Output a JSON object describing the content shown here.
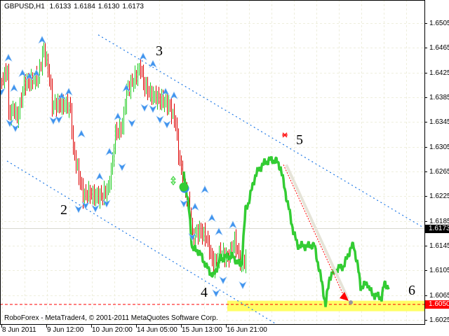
{
  "header": {
    "symbol": "GBPUSD,H1",
    "open": "1.6133",
    "high": "1.6184",
    "low": "1.6130",
    "close": "1.6173"
  },
  "copyright": "RoboForex - MetaTrader4, © 2001-2011 MetaQuotes Software Corp.",
  "chart_data": {
    "type": "ohlc",
    "symbol": "GBPUSD",
    "timeframe": "H1",
    "price_axis": {
      "range": [
        1.6025,
        1.6505
      ],
      "ticks": [
        "1.6505",
        "1.6465",
        "1.6425",
        "1.6385",
        "1.6345",
        "1.6305",
        "1.6265",
        "1.6225",
        "1.6185",
        "1.6145",
        "1.6105",
        "1.6065",
        "1.6025"
      ]
    },
    "time_axis": {
      "labels": [
        "8 Jun 2011",
        "9 Jun 12:00",
        "10 Jun 20:00",
        "14 Jun 05:00",
        "15 Jun 13:00",
        "16 Jun 21:00"
      ]
    },
    "grid": true,
    "current_price": {
      "value": "1.6173",
      "color": "#000000"
    },
    "level": {
      "value": "1.6050",
      "color": "#ff0000"
    },
    "colors": {
      "up_bar": "#22cc22",
      "down_bar": "#dd0000",
      "line": "#33cc33",
      "fractal": "#3f93ee",
      "channel": "#1e78e6",
      "zone": "#ffff66"
    },
    "bars_path": [
      [
        "2011-06-08 04:00",
        1.6412
      ],
      [
        "2011-06-08 08:00",
        1.6429
      ],
      [
        "2011-06-08 09:00",
        1.6356
      ],
      [
        "2011-06-08 13:00",
        1.6367
      ],
      [
        "2011-06-08 15:00",
        1.635
      ],
      [
        "2011-06-08 20:00",
        1.6407
      ],
      [
        "2011-06-09 01:00",
        1.6412
      ],
      [
        "2011-06-09 06:00",
        1.6418
      ],
      [
        "2011-06-09 10:00",
        1.6463
      ],
      [
        "2011-06-09 14:00",
        1.6418
      ],
      [
        "2011-06-09 16:00",
        1.6373
      ],
      [
        "2011-06-09 21:00",
        1.6373
      ],
      [
        "2011-06-10 02:00",
        1.6373
      ],
      [
        "2011-06-10 05:00",
        1.6367
      ],
      [
        "2011-06-10 07:00",
        1.6299
      ],
      [
        "2011-06-10 11:00",
        1.6259
      ],
      [
        "2011-06-10 14:00",
        1.6225
      ],
      [
        "2011-06-10 17:00",
        1.6231
      ],
      [
        "2011-06-10 22:00",
        1.6225
      ],
      [
        "2011-06-13 03:00",
        1.6225
      ],
      [
        "2011-06-13 08:00",
        1.6237
      ],
      [
        "2011-06-13 11:00",
        1.6282
      ],
      [
        "2011-06-13 13:00",
        1.6327
      ],
      [
        "2011-06-13 18:00",
        1.6339
      ],
      [
        "2011-06-13 21:00",
        1.6395
      ],
      [
        "2011-06-14 02:00",
        1.6412
      ],
      [
        "2011-06-14 07:00",
        1.6435
      ],
      [
        "2011-06-14 09:00",
        1.6407
      ],
      [
        "2011-06-14 14:00",
        1.639
      ],
      [
        "2011-06-14 19:00",
        1.6384
      ],
      [
        "2011-06-15 03:00",
        1.6373
      ],
      [
        "2011-06-15 08:00",
        1.6344
      ],
      [
        "2011-06-15 10:00",
        1.6293
      ],
      [
        "2011-06-15 14:00",
        1.6242
      ],
      [
        "2011-06-15 18:00",
        1.6203
      ],
      [
        "2011-06-15 20:00",
        1.6158
      ],
      [
        "2011-06-16 01:00",
        1.6169
      ],
      [
        "2011-06-16 06:00",
        1.6158
      ],
      [
        "2011-06-16 11:00",
        1.6112
      ],
      [
        "2011-06-16 16:00",
        1.6135
      ],
      [
        "2011-06-16 21:00",
        1.6124
      ],
      [
        "2011-06-17 02:00",
        1.6152
      ],
      [
        "2011-06-17 07:00",
        1.6112
      ],
      [
        "2011-06-17 10:00",
        1.6124
      ]
    ],
    "line_series": [
      [
        "2011-06-15 14:00",
        1.6265
      ],
      [
        "2011-06-15 18:00",
        1.6197
      ],
      [
        "2011-06-15 20:00",
        1.6141
      ],
      [
        "2011-06-16 01:00",
        1.6135
      ],
      [
        "2011-06-16 06:00",
        1.6112
      ],
      [
        "2011-06-16 11:00",
        1.6095
      ],
      [
        "2011-06-16 16:00",
        1.6124
      ],
      [
        "2011-06-17 00:00",
        1.6129
      ],
      [
        "2011-06-17 07:00",
        1.6112
      ],
      [
        "2011-06-17 10:00",
        1.6203
      ],
      [
        "2011-06-17 12:00",
        1.6214
      ],
      [
        "2011-06-17 17:00",
        1.6259
      ],
      [
        "2011-06-17 22:00",
        1.6276
      ],
      [
        "2011-06-20 03:00",
        1.6284
      ],
      [
        "2011-06-20 08:00",
        1.6282
      ],
      [
        "2011-06-20 11:00",
        1.6271
      ],
      [
        "2011-06-20 15:00",
        1.6225
      ],
      [
        "2011-06-20 17:00",
        1.6203
      ],
      [
        "2011-06-20 20:00",
        1.6169
      ],
      [
        "2011-06-20 23:00",
        1.6146
      ],
      [
        "2011-06-21 04:00",
        1.6144
      ],
      [
        "2011-06-21 11:00",
        1.6146
      ],
      [
        "2011-06-21 14:00",
        1.6112
      ],
      [
        "2011-06-21 17:00",
        1.6078
      ],
      [
        "2011-06-21 19:00",
        1.6048
      ],
      [
        "2011-06-21 22:00",
        1.6095
      ],
      [
        "2011-06-22 03:00",
        1.6107
      ],
      [
        "2011-06-22 08:00",
        1.6112
      ],
      [
        "2011-06-22 13:00",
        1.6141
      ],
      [
        "2011-06-22 15:00",
        1.6146
      ],
      [
        "2011-06-22 18:00",
        1.6112
      ],
      [
        "2011-06-22 20:00",
        1.6078
      ],
      [
        "2011-06-23 01:00",
        1.6084
      ],
      [
        "2011-06-23 04:00",
        1.6067
      ],
      [
        "2011-06-23 11:00",
        1.6061
      ],
      [
        "2011-06-23 13:00",
        1.6084
      ],
      [
        "2011-06-23 16:00",
        1.6078
      ]
    ],
    "fractals_up": [
      [
        "2011-06-08 09:00",
        1.6448
      ],
      [
        "2011-06-09 09:00",
        1.6477
      ],
      [
        "2011-06-08 19:00",
        1.6423
      ],
      [
        "2011-06-09 00:00",
        1.6418
      ],
      [
        "2011-06-09 05:00",
        1.6423
      ],
      [
        "2011-06-08 13:00",
        1.6399
      ],
      [
        "2011-06-09 23:00",
        1.6386
      ],
      [
        "2011-06-10 04:00",
        1.6393
      ],
      [
        "2011-06-10 13:00",
        1.6325
      ],
      [
        "2011-06-13 02:00",
        1.6256
      ],
      [
        "2011-06-13 09:00",
        1.6296
      ],
      [
        "2011-06-13 15:00",
        1.6353
      ],
      [
        "2011-06-13 21:00",
        1.6399
      ],
      [
        "2011-06-14 09:00",
        1.645
      ],
      [
        "2011-06-14 16:00",
        1.6438
      ],
      [
        "2011-06-15 01:00",
        1.6393
      ],
      [
        "2011-06-15 07:00",
        1.6387
      ],
      [
        "2011-06-16 05:00",
        1.6235
      ],
      [
        "2011-06-15 22:00",
        1.6207
      ],
      [
        "2011-06-16 10:00",
        1.6189
      ],
      [
        "2011-06-16 15:00",
        1.6167
      ],
      [
        "2011-06-17 01:00",
        1.6178
      ]
    ],
    "fractals_down": [
      [
        "2011-06-08 04:00",
        1.6395
      ],
      [
        "2011-06-08 10:00",
        1.6344
      ],
      [
        "2011-06-08 14:00",
        1.6336
      ],
      [
        "2011-06-09 17:00",
        1.6348
      ],
      [
        "2011-06-09 21:00",
        1.635
      ],
      [
        "2011-06-10 11:00",
        1.6205
      ],
      [
        "2011-06-10 16:00",
        1.6211
      ],
      [
        "2011-06-10 23:00",
        1.6206
      ],
      [
        "2011-06-13 07:00",
        1.6214
      ],
      [
        "2011-06-13 18:00",
        1.6273
      ],
      [
        "2011-06-14 01:00",
        1.6344
      ],
      [
        "2011-06-14 10:00",
        1.6369
      ],
      [
        "2011-06-14 16:00",
        1.6367
      ],
      [
        "2011-06-14 21:00",
        1.635
      ],
      [
        "2011-06-15 02:00",
        1.6342
      ],
      [
        "2011-06-15 14:00",
        1.6214
      ],
      [
        "2011-06-15 20:00",
        1.616
      ],
      [
        "2011-06-16 18:00",
        1.609
      ],
      [
        "2011-06-16 13:00",
        1.6069
      ],
      [
        "2011-06-17 08:00",
        1.6082
      ]
    ],
    "channel_lines": [
      [
        [
          "2011-06-13 01:00",
          1.6486
        ],
        [
          "2011-06-24 17:00",
          1.6174
        ]
      ],
      [
        [
          "2011-06-08 08:00",
          1.6282
        ],
        [
          "2011-06-20 08:00",
          1.6018
        ]
      ]
    ],
    "forecast_arrow": [
      [
        "2011-06-20 13:00",
        1.6276
      ],
      [
        "2011-06-22 09:00",
        1.6059
      ]
    ],
    "target_zone": {
      "from": "2011-06-16 21:00",
      "price_top": 1.6056,
      "price_bottom": 1.6039
    },
    "star_marker": [
      "2011-06-20 14:00",
      1.6324
    ],
    "entry_marker": [
      "2011-06-15 14:00",
      1.624
    ],
    "wave_labels": [
      {
        "label": "2",
        "time": "2011-06-10 01:00",
        "price": 1.6203
      },
      {
        "label": "3",
        "time": "2011-06-14 21:00",
        "price": 1.646
      },
      {
        "label": "4",
        "time": "2011-06-16 05:00",
        "price": 1.6069
      },
      {
        "label": "5",
        "time": "2011-06-21 01:00",
        "price": 1.6316
      },
      {
        "label": "6",
        "time": "2011-06-24 09:00",
        "price": 1.6073
      }
    ]
  }
}
